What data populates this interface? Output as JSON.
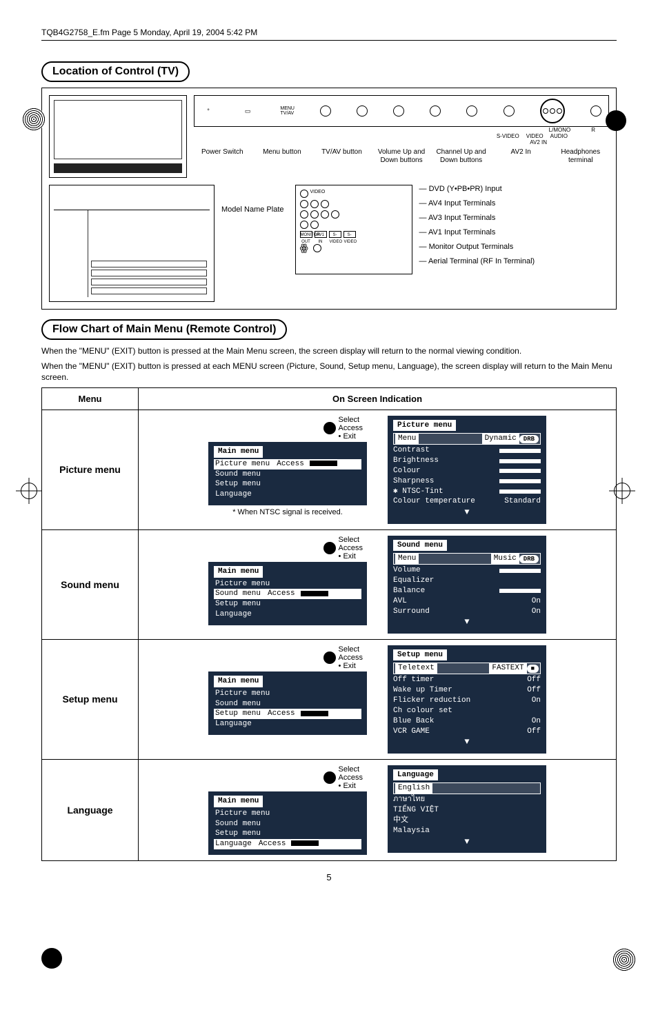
{
  "header": "TQB4G2758_E.fm Page 5 Monday, April 19, 2004 5:42 PM",
  "location_title": "Location of Control (TV)",
  "panel_top_labels": {
    "menutvav": "MENU TV/AV",
    "lmono": "L/MONO",
    "r": "R",
    "svideo": "S-VIDEO",
    "video": "VIDEO",
    "audio": "AUDIO",
    "av2in": "AV2 IN"
  },
  "front_labels": {
    "power": "Power Switch",
    "menu": "Menu button",
    "tvav": "TV/AV button",
    "volume": "Volume Up and Down buttons",
    "channel": "Channel Up and Down buttons",
    "av2": "AV2 In",
    "headphones": "Headphones terminal"
  },
  "model_plate": "Model Name Plate",
  "rear_labels": {
    "dvd": "DVD (Y•PB•PR) Input",
    "av4": "AV4 Input Terminals",
    "av3": "AV3 Input Terminals",
    "av1": "AV1 Input Terminals",
    "monitor": "Monitor Output Terminals",
    "aerial": "Aerial Terminal (RF In Terminal)"
  },
  "flow_title": "Flow Chart of Main Menu (Remote Control)",
  "flow_desc1": "When the \"MENU\" (EXIT) button is pressed at the Main Menu screen, the screen display will return to the normal viewing condition.",
  "flow_desc2": "When the \"MENU\" (EXIT) button is pressed at each MENU screen (Picture, Sound, Setup menu, Language), the screen display will return to the Main Menu screen.",
  "table_headers": {
    "menu": "Menu",
    "osi": "On Screen Indication"
  },
  "hints": {
    "select": "Select",
    "access": "Access",
    "exit": "Exit"
  },
  "main_menu": {
    "title": "Main menu",
    "items": [
      "Picture menu",
      "Sound menu",
      "Setup menu",
      "Language"
    ],
    "access": "Access"
  },
  "rows": {
    "picture": {
      "name": "Picture menu",
      "footnote": "* When NTSC signal is received.",
      "osd": {
        "title": "Picture menu",
        "menu_label": "Menu",
        "menu_value": "Dynamic",
        "badge": "DRB",
        "items": [
          {
            "k": "Contrast",
            "type": "slider"
          },
          {
            "k": "Brightness",
            "type": "slider"
          },
          {
            "k": "Colour",
            "type": "slider"
          },
          {
            "k": "Sharpness",
            "type": "slider"
          },
          {
            "k": "NTSC-Tint",
            "type": "slider",
            "star": true
          },
          {
            "k": "Colour temperature",
            "v": "Standard"
          }
        ]
      }
    },
    "sound": {
      "name": "Sound menu",
      "osd": {
        "title": "Sound menu",
        "menu_label": "Menu",
        "menu_value": "Music",
        "badge": "DRB",
        "items": [
          {
            "k": "Volume",
            "type": "slider"
          },
          {
            "k": "Equalizer",
            "v": ""
          },
          {
            "k": "Balance",
            "type": "slider"
          },
          {
            "k": "AVL",
            "v": "On"
          },
          {
            "k": "Surround",
            "v": "On"
          }
        ]
      }
    },
    "setup": {
      "name": "Setup menu",
      "osd": {
        "title": "Setup menu",
        "hl_label": "Teletext",
        "hl_value": "FASTEXT",
        "badge": "■",
        "items": [
          {
            "k": "Off timer",
            "v": "Off"
          },
          {
            "k": "Wake up Timer",
            "v": "Off"
          },
          {
            "k": "Flicker reduction",
            "v": "On"
          },
          {
            "k": "Ch colour set",
            "v": ""
          },
          {
            "k": "Blue Back",
            "v": "On"
          },
          {
            "k": "VCR GAME",
            "v": "Off"
          }
        ]
      }
    },
    "language": {
      "name": "Language",
      "osd": {
        "title": "Language",
        "hl_label": "English",
        "items": [
          {
            "k": "ภาษาไทย"
          },
          {
            "k": "TIẾNG VIỆT"
          },
          {
            "k": "中文"
          },
          {
            "k": "Malaysia"
          }
        ]
      }
    }
  },
  "page_num": "5",
  "colors": {
    "osd_bg": "#1a2a40",
    "osd_text": "#ffffff",
    "page_bg": "#ffffff",
    "ink": "#000000"
  }
}
